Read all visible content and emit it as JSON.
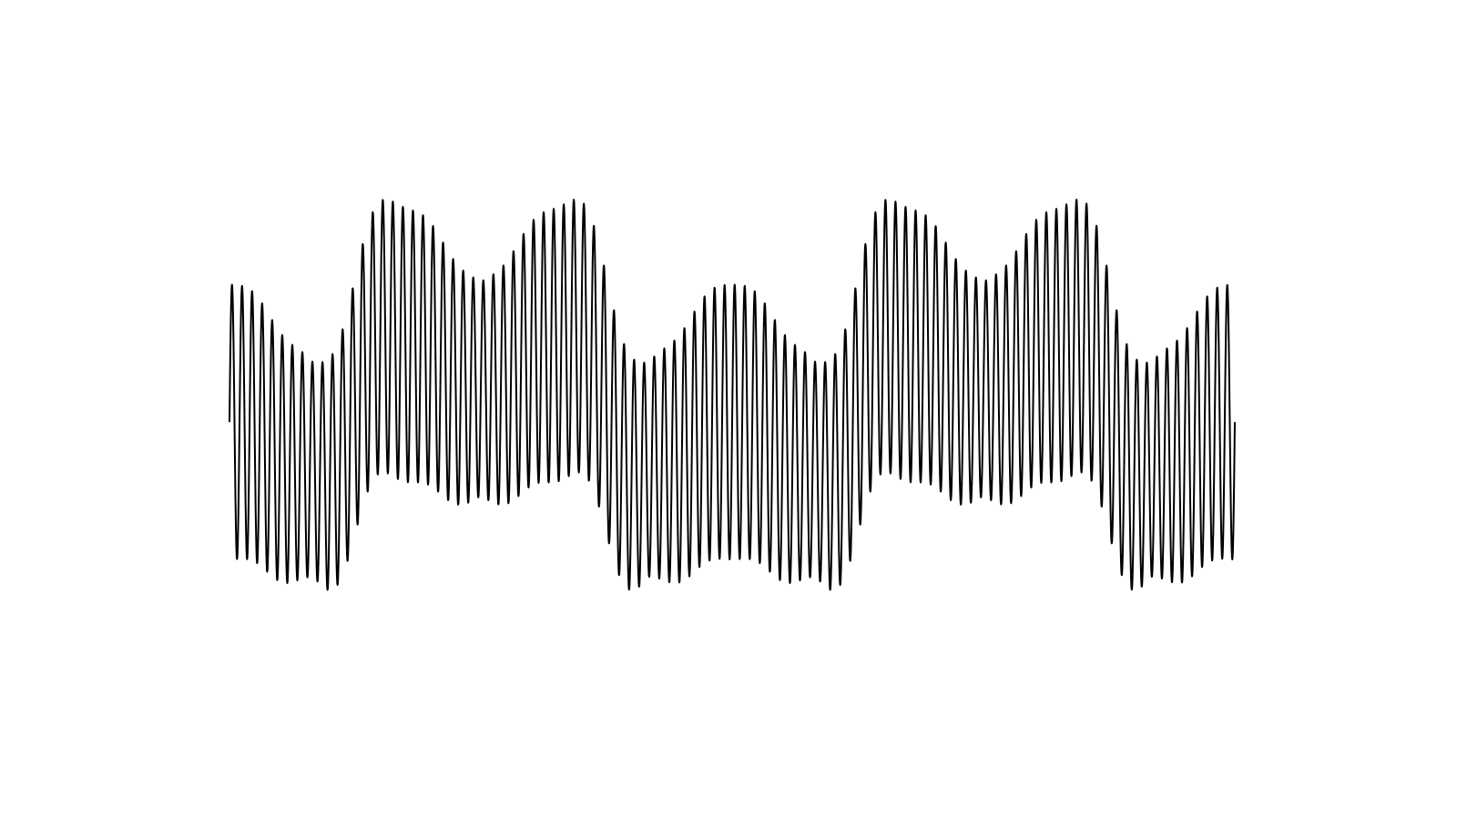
{
  "chart_data": {
    "type": "line",
    "title": "",
    "xlabel": "",
    "ylabel": "",
    "axes_visible": false,
    "grid": false,
    "legend": "none",
    "xlim": [
      0,
      2
    ],
    "ylim": [
      -1.6,
      1.6
    ],
    "line_color": "#000000",
    "series": [
      {
        "name": "",
        "sample_count": 4000,
        "components": {
          "carrier": {
            "amplitude": 0.72,
            "cycles_per_unit": 50,
            "phase": 0
          },
          "envelope_square": {
            "amplitude": 0.42,
            "cycles_per_unit": 1,
            "phase": 1.5708,
            "harmonics": [
              1,
              3,
              5,
              7,
              9
            ]
          },
          "envelope_beat": {
            "amplitude": 0.34,
            "cycles_per_unit": 3,
            "phase": 1.5708
          },
          "beat_modulation": {
            "amplitude": 0.22,
            "cycles_per_unit": 6
          }
        }
      }
    ]
  },
  "colors": {
    "background": "#ffffff",
    "line": "#000000"
  }
}
